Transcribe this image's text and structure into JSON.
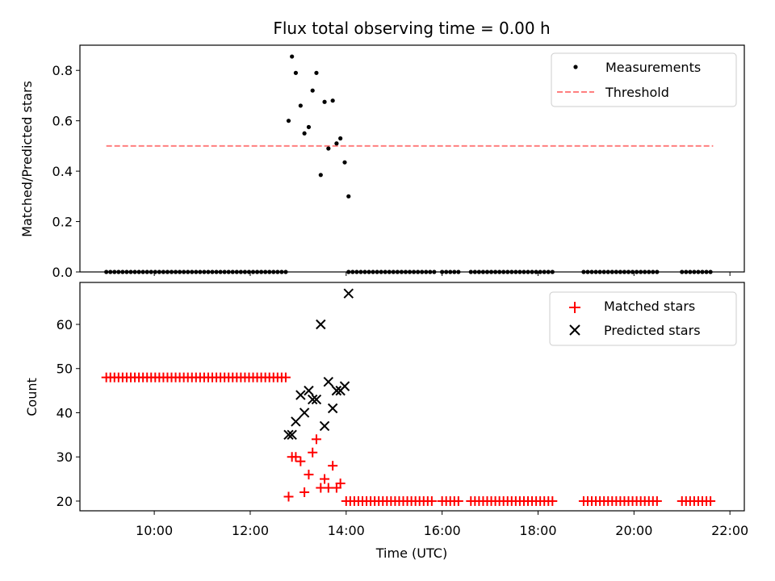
{
  "chart_data": [
    {
      "type": "scatter",
      "title": "Flux total observing time = 0.00 h",
      "xlabel": "",
      "ylabel": "Matched/Predicted stars",
      "ylim": [
        0,
        0.9
      ],
      "yticks": [
        "0.0",
        "0.2",
        "0.4",
        "0.6",
        "0.8"
      ],
      "ytick_values": [
        0,
        0.2,
        0.4,
        0.6,
        0.8
      ],
      "legend": "top-right",
      "series": [
        {
          "name": "Measurements",
          "marker": "dot",
          "color": "#000000",
          "points": [
            [
              12.8,
              0.6
            ],
            [
              12.87,
              0.855
            ],
            [
              12.95,
              0.79
            ],
            [
              13.05,
              0.66
            ],
            [
              13.13,
              0.55
            ],
            [
              13.22,
              0.575
            ],
            [
              13.3,
              0.72
            ],
            [
              13.38,
              0.79
            ],
            [
              13.47,
              0.385
            ],
            [
              13.55,
              0.675
            ],
            [
              13.63,
              0.49
            ],
            [
              13.72,
              0.68
            ],
            [
              13.8,
              0.51
            ],
            [
              13.88,
              0.53
            ],
            [
              13.97,
              0.435
            ],
            [
              14.05,
              0.3
            ]
          ]
        },
        {
          "name": "Threshold",
          "line": "dashed",
          "color": "#ff7f7f",
          "x": [
            9.0,
            21.65
          ],
          "y": [
            0.5,
            0.5
          ]
        }
      ],
      "zero_points": {
        "value": 0,
        "segments": [
          [
            9.0,
            12.77,
            0.085
          ],
          [
            14.05,
            15.85,
            0.085
          ],
          [
            16.0,
            16.35,
            0.085
          ],
          [
            16.6,
            18.35,
            0.085
          ],
          [
            18.95,
            20.5,
            0.085
          ],
          [
            21.0,
            21.65,
            0.085
          ]
        ]
      }
    },
    {
      "type": "scatter",
      "title": "",
      "xlabel": "Time (UTC)",
      "ylabel": "Count",
      "xlim": [
        8.45,
        22.3
      ],
      "xticks": [
        "10:00",
        "12:00",
        "14:00",
        "16:00",
        "18:00",
        "20:00",
        "22:00"
      ],
      "xtick_values": [
        10,
        12,
        14,
        16,
        18,
        20,
        22
      ],
      "ylim": [
        17.8,
        69.5
      ],
      "yticks": [
        "20",
        "30",
        "40",
        "50",
        "60"
      ],
      "ytick_values": [
        20,
        30,
        40,
        50,
        60
      ],
      "legend": "top-right",
      "series": [
        {
          "name": "Matched stars",
          "marker": "plus",
          "color": "#ff0000",
          "points": [
            [
              12.8,
              21
            ],
            [
              12.87,
              30
            ],
            [
              12.95,
              30
            ],
            [
              13.05,
              29
            ],
            [
              13.13,
              22
            ],
            [
              13.22,
              26
            ],
            [
              13.3,
              31
            ],
            [
              13.38,
              34
            ],
            [
              13.47,
              23
            ],
            [
              13.55,
              25
            ],
            [
              13.63,
              23
            ],
            [
              13.72,
              28
            ],
            [
              13.8,
              23
            ],
            [
              13.88,
              24
            ]
          ],
          "runs": [
            [
              9.0,
              12.77,
              0.085,
              48
            ],
            [
              14.0,
              15.85,
              0.085,
              20
            ],
            [
              16.0,
              16.35,
              0.085,
              20
            ],
            [
              16.6,
              18.35,
              0.085,
              20
            ],
            [
              18.95,
              20.5,
              0.085,
              20
            ],
            [
              21.0,
              21.65,
              0.085,
              20
            ]
          ]
        },
        {
          "name": "Predicted stars",
          "marker": "x",
          "color": "#000000",
          "points": [
            [
              12.8,
              35
            ],
            [
              12.87,
              35
            ],
            [
              12.95,
              38
            ],
            [
              13.05,
              44
            ],
            [
              13.13,
              40
            ],
            [
              13.22,
              45
            ],
            [
              13.3,
              43
            ],
            [
              13.38,
              43
            ],
            [
              13.47,
              60
            ],
            [
              13.55,
              37
            ],
            [
              13.63,
              47
            ],
            [
              13.72,
              41
            ],
            [
              13.8,
              45
            ],
            [
              13.88,
              45
            ],
            [
              13.97,
              46
            ],
            [
              14.05,
              67
            ]
          ]
        }
      ]
    }
  ]
}
